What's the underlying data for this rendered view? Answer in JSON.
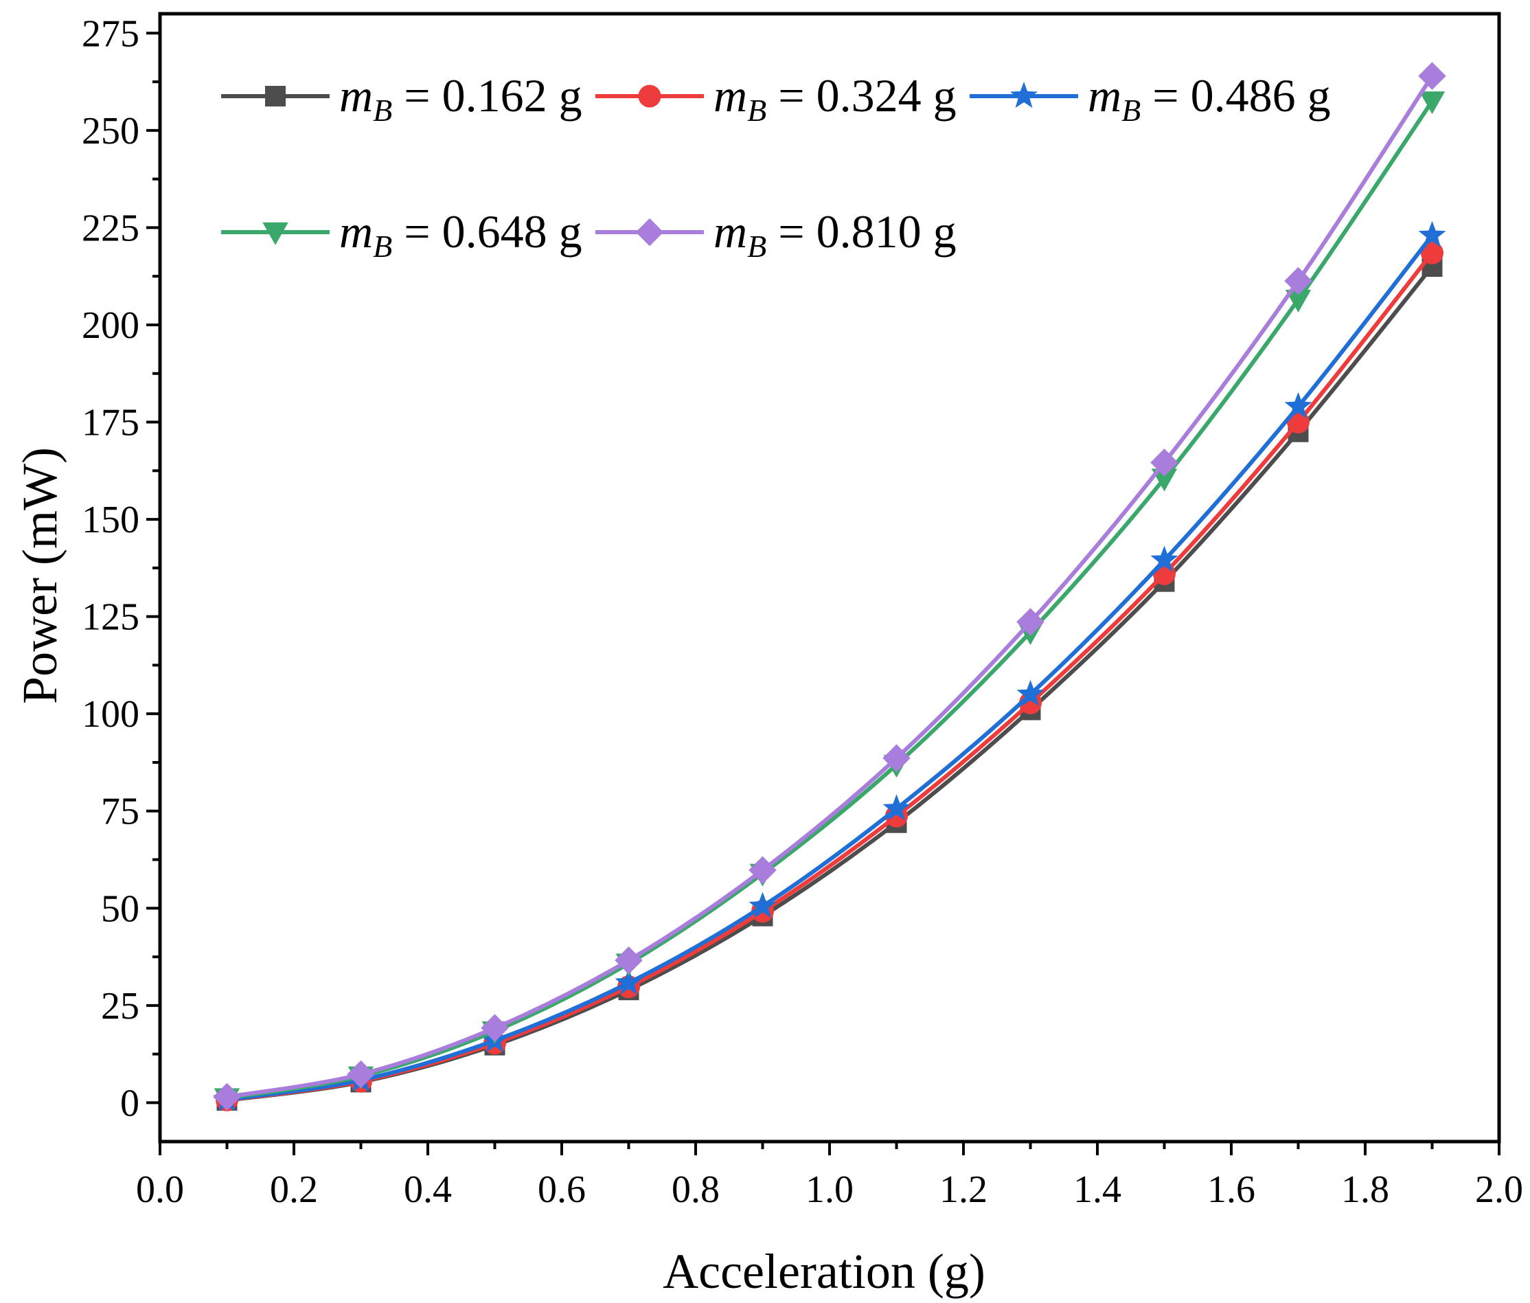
{
  "chart_data": {
    "type": "line",
    "xlabel": "Acceleration (g)",
    "ylabel": "Power (mW)",
    "xlim": [
      0.0,
      2.0
    ],
    "ylim": [
      -10,
      280
    ],
    "x_ticks": [
      "0.0",
      "0.2",
      "0.4",
      "0.6",
      "0.8",
      "1.0",
      "1.2",
      "1.4",
      "1.6",
      "1.8",
      "2.0"
    ],
    "y_ticks": [
      "0",
      "25",
      "50",
      "75",
      "100",
      "125",
      "150",
      "175",
      "200",
      "225",
      "250",
      "275"
    ],
    "grid": false,
    "legend_position": "top-left",
    "x": [
      0.1,
      0.3,
      0.5,
      0.7,
      0.9,
      1.1,
      1.3,
      1.5,
      1.7,
      1.9
    ],
    "series": [
      {
        "name": "m_B = 0.162 g",
        "symbol": "m",
        "subscript": "B",
        "rest": " = 0.162 g",
        "color": "#4d4d4d",
        "marker": "square",
        "values": [
          0.6,
          5.3,
          14.8,
          29.0,
          48.0,
          72.0,
          101.0,
          134.0,
          172.5,
          215.0
        ]
      },
      {
        "name": "m_B = 0.324 g",
        "symbol": "m",
        "subscript": "B",
        "rest": " = 0.324 g",
        "color": "#ee3b3b",
        "marker": "circle",
        "values": [
          0.7,
          5.5,
          15.3,
          29.8,
          49.2,
          73.7,
          102.8,
          136.0,
          175.0,
          218.5
        ]
      },
      {
        "name": "m_B = 0.486 g",
        "symbol": "m",
        "subscript": "B",
        "rest": " = 0.486 g",
        "color": "#1f6fd6",
        "marker": "star",
        "values": [
          0.8,
          5.8,
          16.0,
          30.8,
          50.5,
          75.6,
          105.0,
          139.5,
          179.0,
          223.0
        ]
      },
      {
        "name": "m_B = 0.648 g",
        "symbol": "m",
        "subscript": "B",
        "rest": " = 0.648 g",
        "color": "#3aa86b",
        "marker": "triangle-down",
        "values": [
          1.2,
          6.8,
          18.4,
          35.8,
          58.9,
          86.9,
          121.0,
          160.5,
          206.5,
          257.5
        ]
      },
      {
        "name": "m_B = 0.810 g",
        "symbol": "m",
        "subscript": "B",
        "rest": " = 0.810 g",
        "color": "#a97ddb",
        "marker": "diamond",
        "values": [
          1.5,
          7.3,
          19.2,
          36.6,
          59.8,
          88.6,
          123.6,
          164.6,
          211.3,
          264.0
        ]
      }
    ]
  }
}
